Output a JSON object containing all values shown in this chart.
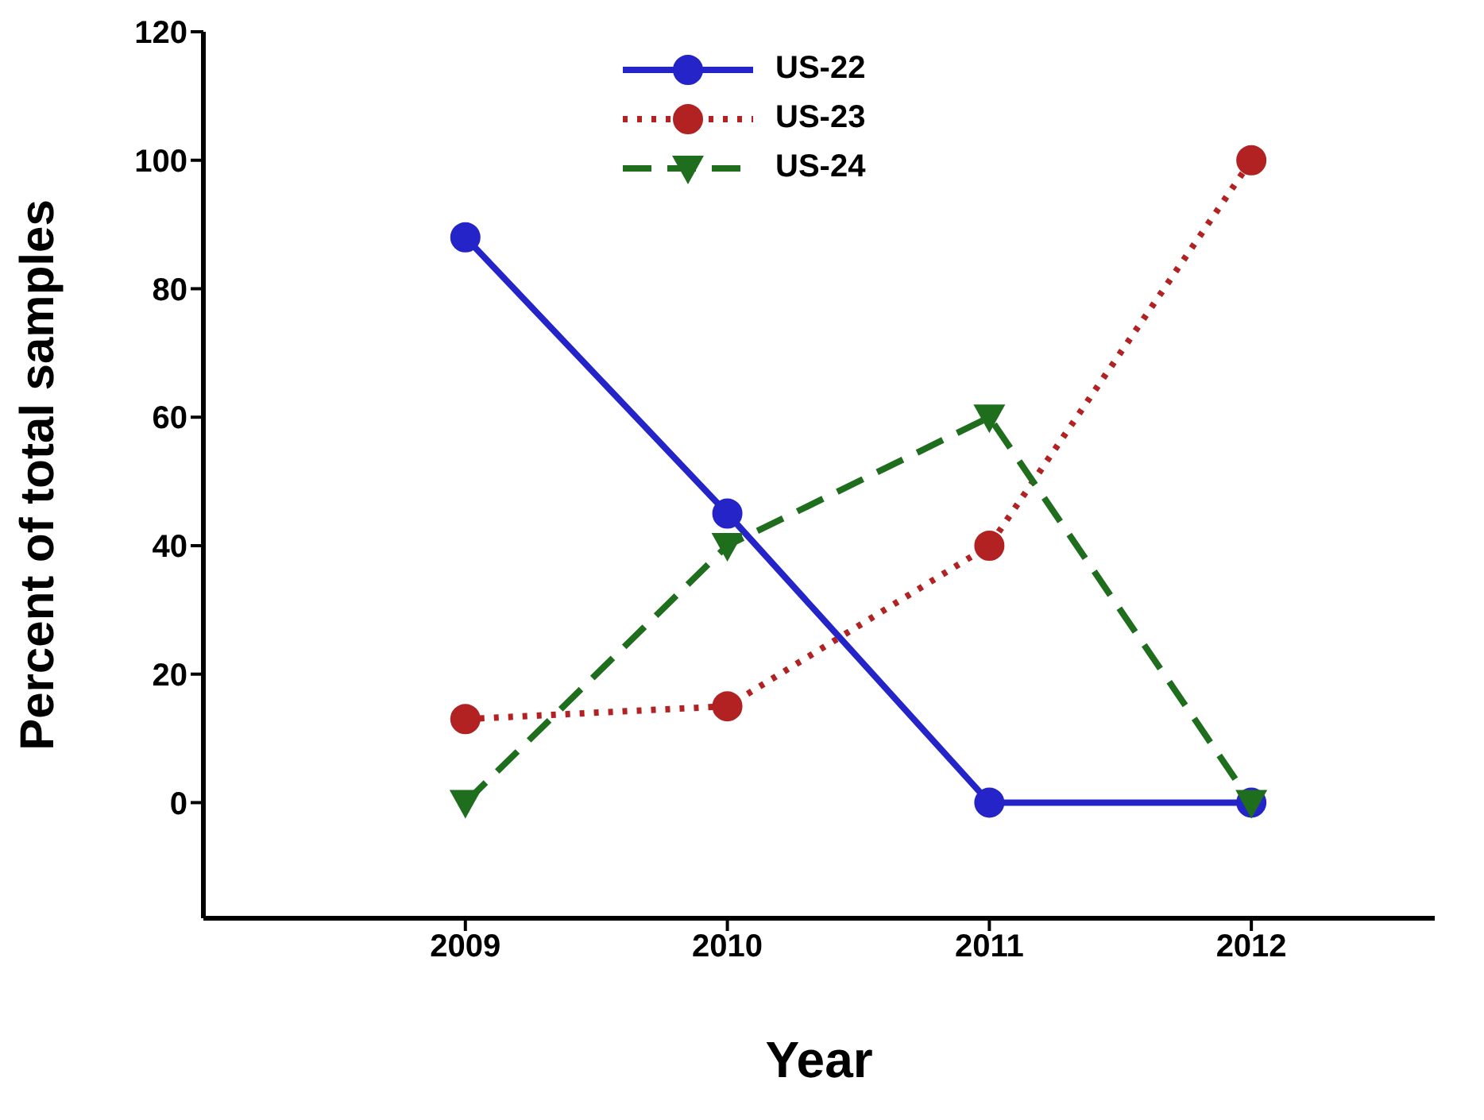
{
  "chart_data": {
    "type": "line",
    "xlabel": "Year",
    "ylabel": "Percent of total samples",
    "x": [
      2009,
      2010,
      2011,
      2012
    ],
    "xlim": [
      2008,
      2012.7
    ],
    "xticks": [
      2009,
      2010,
      2011,
      2012
    ],
    "ylim": [
      -18,
      120
    ],
    "yticks": [
      0,
      20,
      40,
      60,
      80,
      100,
      120
    ],
    "grid": false,
    "legend": "top",
    "series": [
      {
        "name": "US-22",
        "color": "#2424c8",
        "values": [
          88,
          45,
          0,
          0
        ],
        "marker": "circle",
        "line_style": "solid"
      },
      {
        "name": "US-23",
        "color": "#b22222",
        "values": [
          13,
          15,
          40,
          100
        ],
        "marker": "circle",
        "line_style": "dotted"
      },
      {
        "name": "US-24",
        "color": "#1e6e1e",
        "values": [
          0,
          40,
          60,
          0
        ],
        "marker": "triangle",
        "line_style": "dashed"
      }
    ]
  }
}
